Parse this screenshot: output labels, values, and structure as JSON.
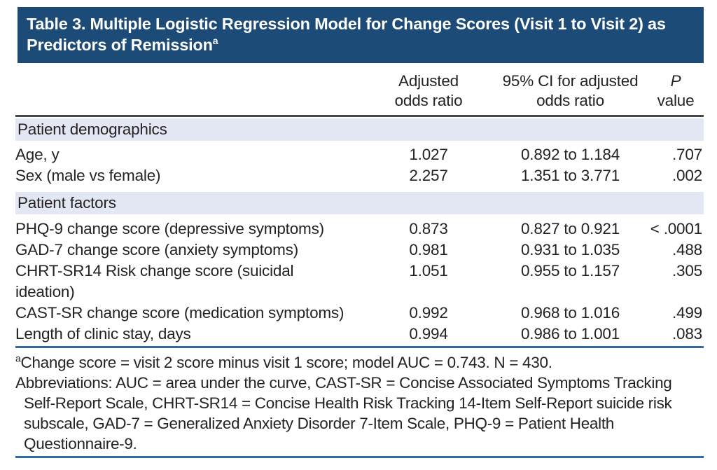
{
  "page": {
    "title": "Table 3. Multiple Logistic Regression Model for Change Scores (Visit 1 to Visit 2) as Predictors of Remission",
    "title_footnote_marker": "a"
  },
  "columns": {
    "adjusted_or": "Adjusted\nodds ratio",
    "ci": "95% CI for adjusted\nodds ratio",
    "p_italic": "P",
    "p_rest": "value"
  },
  "rows": [
    {
      "type": "section",
      "label": "Patient demographics"
    },
    {
      "type": "data",
      "label": "Age, y",
      "odds_ratio": "1.027",
      "ci": "0.892 to 1.184",
      "p_value": ".707"
    },
    {
      "type": "data",
      "label": "Sex (male vs female)",
      "odds_ratio": "2.257",
      "ci": "1.351 to 3.771",
      "p_value": ".002"
    },
    {
      "type": "section",
      "label": "Patient factors"
    },
    {
      "type": "data",
      "label": "PHQ-9 change score (depressive symptoms)",
      "odds_ratio": "0.873",
      "ci": "0.827 to 0.921",
      "p_value": "< .0001"
    },
    {
      "type": "data",
      "label": "GAD-7 change score (anxiety symptoms)",
      "odds_ratio": "0.981",
      "ci": "0.931 to 1.035",
      "p_value": ".488"
    },
    {
      "type": "data",
      "label": "CHRT-SR14 Risk change score (suicidal ideation)",
      "odds_ratio": "1.051",
      "ci": "0.955 to 1.157",
      "p_value": ".305"
    },
    {
      "type": "data",
      "label": "CAST-SR change score (medication symptoms)",
      "odds_ratio": "0.992",
      "ci": "0.968 to 1.016",
      "p_value": ".499"
    },
    {
      "type": "data",
      "label": "Length of clinic stay, days",
      "odds_ratio": "0.994",
      "ci": "0.986 to 1.001",
      "p_value": ".083"
    }
  ],
  "footnotes": {
    "note_marker": "a",
    "note_text": "Change score = visit 2 score minus visit 1 score; model AUC = 0.743. N = 430.",
    "abbreviations": "Abbreviations: AUC = area under the curve, CAST-SR = Concise Associated Symptoms Tracking Self-Report Scale, CHRT-SR14 = Concise Health Risk Tracking 14-Item Self-Report suicide risk subscale, GAD-7 = Generalized Anxiety Disorder 7-Item Scale, PHQ-9 = Patient Health Questionnaire-9."
  },
  "colors": {
    "title_bar_bg": "#1d4b77",
    "section_row_bg": "#e3e7f4",
    "rule_blue": "#34699f",
    "rule_dark": "#474749",
    "text": "#262223"
  }
}
